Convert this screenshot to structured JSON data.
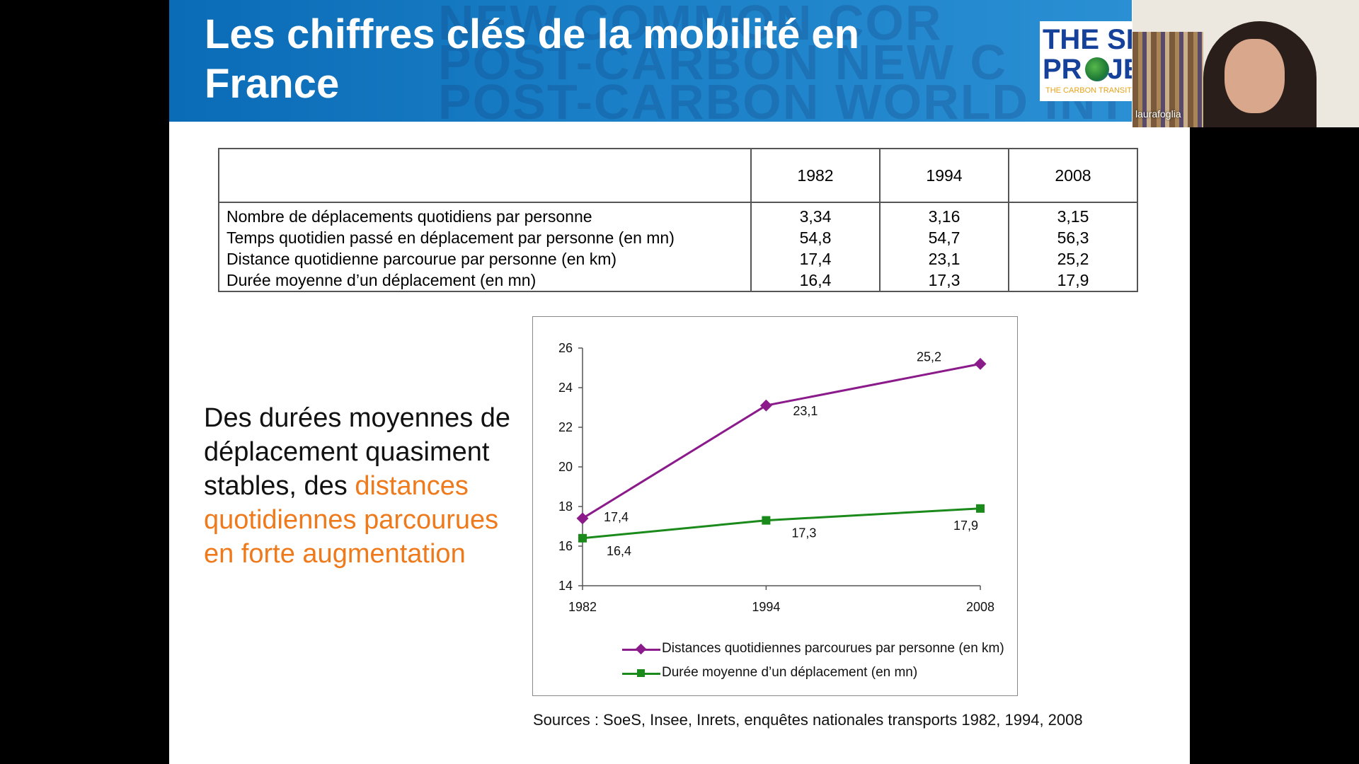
{
  "slide": {
    "title_line1": "Les chiffres clés de la mobilité en",
    "title_line2": "France",
    "logo": {
      "line1": "THE SHI",
      "line2": "PR",
      "line2b": "JE",
      "tagline": "THE CARBON TRANSITION T"
    },
    "watermark": [
      "NEW COMMON COR",
      "POST-CARBON NEW C",
      "POST-CARBON WORLD INTERNA"
    ]
  },
  "table": {
    "years": [
      "1982",
      "1994",
      "2008"
    ],
    "rows": [
      {
        "label": "Nombre de déplacements quotidiens par personne",
        "values": [
          "3,34",
          "3,16",
          "3,15"
        ]
      },
      {
        "label": "Temps quotidien passé en déplacement par personne (en mn)",
        "values": [
          "54,8",
          "54,7",
          "56,3"
        ]
      },
      {
        "label": "Distance quotidienne parcourue par personne (en km)",
        "values": [
          "17,4",
          "23,1",
          "25,2"
        ]
      },
      {
        "label": "Durée moyenne d’un déplacement (en mn)",
        "values": [
          "16,4",
          "17,3",
          "17,9"
        ]
      }
    ]
  },
  "side_text": {
    "black_part": "Des durées moyennes de déplacement quasiment stables, des",
    "orange_part": "distances quotidiennes parcourues en forte augmentation",
    "orange_color": "#ee7a1c"
  },
  "chart_data": {
    "type": "line",
    "x": [
      "1982",
      "1994",
      "2008"
    ],
    "ylim": [
      14,
      26
    ],
    "yticks": [
      "14",
      "16",
      "18",
      "20",
      "22",
      "24",
      "26"
    ],
    "xticks": [
      "1982",
      "1994",
      "2008"
    ],
    "series": [
      {
        "name": "Distances quotidiennes parcourues par personne (en km)",
        "values": [
          17.4,
          23.1,
          25.2
        ],
        "labels": [
          "17,4",
          "23,1",
          "25,2"
        ],
        "color": "#8b1a8b",
        "marker": "diamond"
      },
      {
        "name": "Durée moyenne d’un déplacement (en mn)",
        "values": [
          16.4,
          17.3,
          17.9
        ],
        "labels": [
          "16,4",
          "17,3",
          "17,9"
        ],
        "color": "#1a8a1a",
        "marker": "square"
      }
    ],
    "legend": "bottom",
    "grid": false
  },
  "sources": "Sources : SoeS, Insee, Inrets, enquêtes nationales transports 1982, 1994, 2008",
  "webcam": {
    "name": "laurafoglia"
  }
}
